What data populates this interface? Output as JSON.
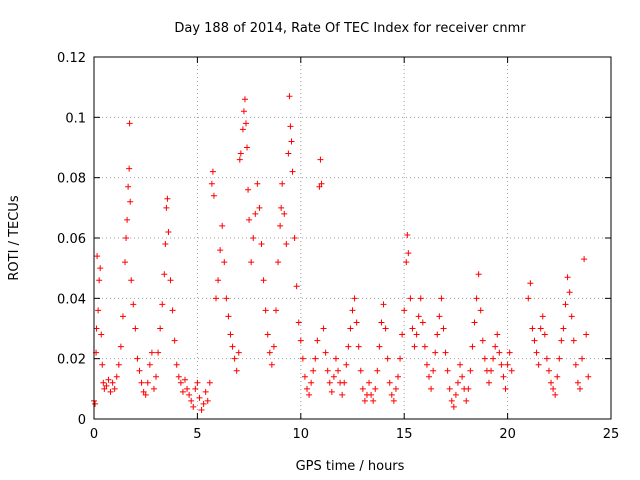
{
  "chart_data": {
    "type": "scatter",
    "title": "Day 188 of 2014, Rate Of TEC Index for receiver cnmr",
    "xlabel": "GPS time / hours",
    "ylabel": "ROTI / TECUs",
    "xlim": [
      0,
      25
    ],
    "ylim": [
      0,
      0.12
    ],
    "xticks": [
      0,
      5,
      10,
      15,
      20,
      25
    ],
    "xtick_labels": [
      "0",
      "5",
      "10",
      "15",
      "20",
      "25"
    ],
    "yticks": [
      0,
      0.02,
      0.04,
      0.06,
      0.08,
      0.1,
      0.12
    ],
    "ytick_labels": [
      "0",
      "0.02",
      "0.04",
      "0.06",
      "0.08",
      "0.1",
      "0.12"
    ],
    "grid": true,
    "marker": "+",
    "series": [
      {
        "name": "ROTI",
        "color": "#ff0000",
        "points": [
          [
            0.0,
            0.006
          ],
          [
            0.05,
            0.005
          ],
          [
            0.1,
            0.022
          ],
          [
            0.12,
            0.03
          ],
          [
            0.15,
            0.054
          ],
          [
            0.2,
            0.036
          ],
          [
            0.25,
            0.046
          ],
          [
            0.3,
            0.05
          ],
          [
            0.35,
            0.028
          ],
          [
            0.4,
            0.018
          ],
          [
            0.45,
            0.012
          ],
          [
            0.5,
            0.01
          ],
          [
            0.6,
            0.011
          ],
          [
            0.7,
            0.013
          ],
          [
            0.8,
            0.009
          ],
          [
            0.9,
            0.012
          ],
          [
            1.0,
            0.01
          ],
          [
            1.1,
            0.014
          ],
          [
            1.2,
            0.018
          ],
          [
            1.3,
            0.024
          ],
          [
            1.4,
            0.034
          ],
          [
            1.5,
            0.052
          ],
          [
            1.55,
            0.06
          ],
          [
            1.6,
            0.066
          ],
          [
            1.65,
            0.077
          ],
          [
            1.7,
            0.083
          ],
          [
            1.72,
            0.098
          ],
          [
            1.75,
            0.072
          ],
          [
            1.8,
            0.046
          ],
          [
            1.9,
            0.038
          ],
          [
            2.0,
            0.03
          ],
          [
            2.1,
            0.02
          ],
          [
            2.2,
            0.016
          ],
          [
            2.3,
            0.012
          ],
          [
            2.4,
            0.009
          ],
          [
            2.5,
            0.008
          ],
          [
            2.6,
            0.012
          ],
          [
            2.7,
            0.018
          ],
          [
            2.8,
            0.022
          ],
          [
            2.9,
            0.01
          ],
          [
            3.0,
            0.014
          ],
          [
            3.1,
            0.022
          ],
          [
            3.2,
            0.03
          ],
          [
            3.3,
            0.038
          ],
          [
            3.4,
            0.048
          ],
          [
            3.45,
            0.058
          ],
          [
            3.5,
            0.07
          ],
          [
            3.55,
            0.073
          ],
          [
            3.6,
            0.062
          ],
          [
            3.7,
            0.046
          ],
          [
            3.8,
            0.036
          ],
          [
            3.9,
            0.026
          ],
          [
            4.0,
            0.018
          ],
          [
            4.1,
            0.014
          ],
          [
            4.2,
            0.012
          ],
          [
            4.3,
            0.009
          ],
          [
            4.4,
            0.013
          ],
          [
            4.5,
            0.01
          ],
          [
            4.6,
            0.008
          ],
          [
            4.7,
            0.006
          ],
          [
            4.8,
            0.004
          ],
          [
            4.9,
            0.01
          ],
          [
            5.0,
            0.012
          ],
          [
            5.1,
            0.007
          ],
          [
            5.2,
            0.003
          ],
          [
            5.3,
            0.005
          ],
          [
            5.4,
            0.009
          ],
          [
            5.5,
            0.006
          ],
          [
            5.6,
            0.012
          ],
          [
            5.7,
            0.078
          ],
          [
            5.75,
            0.082
          ],
          [
            5.8,
            0.074
          ],
          [
            5.9,
            0.04
          ],
          [
            6.0,
            0.046
          ],
          [
            6.1,
            0.056
          ],
          [
            6.2,
            0.064
          ],
          [
            6.3,
            0.052
          ],
          [
            6.4,
            0.04
          ],
          [
            6.5,
            0.034
          ],
          [
            6.6,
            0.028
          ],
          [
            6.7,
            0.024
          ],
          [
            6.8,
            0.02
          ],
          [
            6.9,
            0.016
          ],
          [
            7.0,
            0.022
          ],
          [
            7.05,
            0.086
          ],
          [
            7.1,
            0.088
          ],
          [
            7.2,
            0.096
          ],
          [
            7.25,
            0.102
          ],
          [
            7.3,
            0.106
          ],
          [
            7.35,
            0.098
          ],
          [
            7.4,
            0.09
          ],
          [
            7.45,
            0.076
          ],
          [
            7.5,
            0.066
          ],
          [
            7.6,
            0.052
          ],
          [
            7.7,
            0.06
          ],
          [
            7.8,
            0.068
          ],
          [
            7.9,
            0.078
          ],
          [
            8.0,
            0.07
          ],
          [
            8.1,
            0.058
          ],
          [
            8.2,
            0.046
          ],
          [
            8.3,
            0.036
          ],
          [
            8.4,
            0.028
          ],
          [
            8.5,
            0.022
          ],
          [
            8.6,
            0.018
          ],
          [
            8.7,
            0.024
          ],
          [
            8.8,
            0.036
          ],
          [
            8.9,
            0.052
          ],
          [
            9.0,
            0.064
          ],
          [
            9.05,
            0.07
          ],
          [
            9.1,
            0.078
          ],
          [
            9.2,
            0.068
          ],
          [
            9.3,
            0.058
          ],
          [
            9.4,
            0.088
          ],
          [
            9.45,
            0.107
          ],
          [
            9.5,
            0.097
          ],
          [
            9.55,
            0.092
          ],
          [
            9.6,
            0.082
          ],
          [
            9.7,
            0.06
          ],
          [
            9.8,
            0.044
          ],
          [
            9.9,
            0.032
          ],
          [
            10.0,
            0.026
          ],
          [
            10.1,
            0.02
          ],
          [
            10.2,
            0.014
          ],
          [
            10.3,
            0.01
          ],
          [
            10.4,
            0.008
          ],
          [
            10.5,
            0.012
          ],
          [
            10.6,
            0.016
          ],
          [
            10.7,
            0.02
          ],
          [
            10.8,
            0.026
          ],
          [
            10.9,
            0.077
          ],
          [
            10.95,
            0.086
          ],
          [
            11.0,
            0.078
          ],
          [
            11.1,
            0.03
          ],
          [
            11.2,
            0.022
          ],
          [
            11.3,
            0.016
          ],
          [
            11.4,
            0.012
          ],
          [
            11.5,
            0.009
          ],
          [
            11.6,
            0.014
          ],
          [
            11.7,
            0.02
          ],
          [
            11.8,
            0.016
          ],
          [
            11.9,
            0.012
          ],
          [
            12.0,
            0.008
          ],
          [
            12.1,
            0.012
          ],
          [
            12.2,
            0.018
          ],
          [
            12.3,
            0.024
          ],
          [
            12.4,
            0.03
          ],
          [
            12.5,
            0.036
          ],
          [
            12.6,
            0.04
          ],
          [
            12.7,
            0.032
          ],
          [
            12.8,
            0.024
          ],
          [
            12.9,
            0.016
          ],
          [
            13.0,
            0.01
          ],
          [
            13.1,
            0.006
          ],
          [
            13.2,
            0.008
          ],
          [
            13.3,
            0.012
          ],
          [
            13.4,
            0.008
          ],
          [
            13.5,
            0.006
          ],
          [
            13.6,
            0.01
          ],
          [
            13.7,
            0.016
          ],
          [
            13.8,
            0.024
          ],
          [
            13.9,
            0.032
          ],
          [
            14.0,
            0.038
          ],
          [
            14.1,
            0.03
          ],
          [
            14.2,
            0.02
          ],
          [
            14.3,
            0.012
          ],
          [
            14.4,
            0.008
          ],
          [
            14.5,
            0.006
          ],
          [
            14.6,
            0.01
          ],
          [
            14.7,
            0.014
          ],
          [
            14.8,
            0.02
          ],
          [
            14.9,
            0.028
          ],
          [
            15.0,
            0.036
          ],
          [
            15.1,
            0.052
          ],
          [
            15.15,
            0.061
          ],
          [
            15.2,
            0.055
          ],
          [
            15.3,
            0.04
          ],
          [
            15.4,
            0.03
          ],
          [
            15.5,
            0.024
          ],
          [
            15.6,
            0.028
          ],
          [
            15.7,
            0.034
          ],
          [
            15.8,
            0.04
          ],
          [
            15.9,
            0.032
          ],
          [
            16.0,
            0.024
          ],
          [
            16.1,
            0.018
          ],
          [
            16.2,
            0.014
          ],
          [
            16.3,
            0.01
          ],
          [
            16.4,
            0.016
          ],
          [
            16.5,
            0.022
          ],
          [
            16.6,
            0.028
          ],
          [
            16.7,
            0.034
          ],
          [
            16.8,
            0.04
          ],
          [
            16.9,
            0.03
          ],
          [
            17.0,
            0.022
          ],
          [
            17.1,
            0.016
          ],
          [
            17.2,
            0.01
          ],
          [
            17.3,
            0.006
          ],
          [
            17.4,
            0.004
          ],
          [
            17.5,
            0.008
          ],
          [
            17.6,
            0.012
          ],
          [
            17.7,
            0.018
          ],
          [
            17.8,
            0.014
          ],
          [
            17.9,
            0.01
          ],
          [
            18.0,
            0.006
          ],
          [
            18.1,
            0.01
          ],
          [
            18.2,
            0.016
          ],
          [
            18.3,
            0.024
          ],
          [
            18.4,
            0.032
          ],
          [
            18.5,
            0.04
          ],
          [
            18.6,
            0.048
          ],
          [
            18.7,
            0.036
          ],
          [
            18.8,
            0.026
          ],
          [
            18.9,
            0.02
          ],
          [
            19.0,
            0.016
          ],
          [
            19.1,
            0.012
          ],
          [
            19.2,
            0.016
          ],
          [
            19.3,
            0.02
          ],
          [
            19.4,
            0.024
          ],
          [
            19.5,
            0.028
          ],
          [
            19.6,
            0.022
          ],
          [
            19.7,
            0.018
          ],
          [
            19.8,
            0.014
          ],
          [
            19.9,
            0.01
          ],
          [
            20.0,
            0.018
          ],
          [
            20.1,
            0.022
          ],
          [
            20.2,
            0.016
          ],
          [
            21.0,
            0.04
          ],
          [
            21.1,
            0.045
          ],
          [
            21.2,
            0.03
          ],
          [
            21.3,
            0.026
          ],
          [
            21.4,
            0.022
          ],
          [
            21.5,
            0.018
          ],
          [
            21.6,
            0.03
          ],
          [
            21.7,
            0.034
          ],
          [
            21.8,
            0.028
          ],
          [
            21.9,
            0.02
          ],
          [
            22.0,
            0.016
          ],
          [
            22.1,
            0.012
          ],
          [
            22.2,
            0.01
          ],
          [
            22.3,
            0.008
          ],
          [
            22.4,
            0.014
          ],
          [
            22.5,
            0.02
          ],
          [
            22.6,
            0.026
          ],
          [
            22.7,
            0.03
          ],
          [
            22.8,
            0.038
          ],
          [
            22.9,
            0.047
          ],
          [
            23.0,
            0.042
          ],
          [
            23.1,
            0.034
          ],
          [
            23.2,
            0.026
          ],
          [
            23.3,
            0.018
          ],
          [
            23.4,
            0.012
          ],
          [
            23.5,
            0.01
          ],
          [
            23.6,
            0.02
          ],
          [
            23.7,
            0.053
          ],
          [
            23.8,
            0.028
          ],
          [
            23.9,
            0.014
          ]
        ]
      }
    ]
  }
}
